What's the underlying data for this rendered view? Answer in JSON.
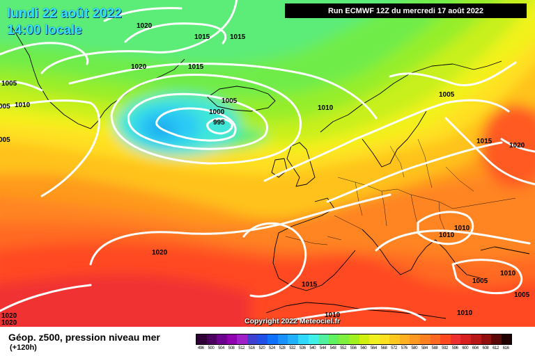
{
  "header": {
    "date_line": "lundi 22 août 2022",
    "time_line": "14:00 locale",
    "run_label": "Run ECMWF 12Z du mercredi 17 août 2022"
  },
  "footer": {
    "title": "Géop. z500, pression niveau mer",
    "horizon": "(+120h)",
    "copyright": "Copyright 2022 Meteociel.fr"
  },
  "legend": {
    "values": [
      "496",
      "500",
      "504",
      "508",
      "512",
      "516",
      "520",
      "524",
      "528",
      "532",
      "536",
      "540",
      "544",
      "548",
      "552",
      "556",
      "560",
      "564",
      "568",
      "572",
      "576",
      "580",
      "584",
      "588",
      "592",
      "596",
      "600",
      "604",
      "608",
      "612",
      "616"
    ],
    "colors": [
      "#2d0036",
      "#4b0060",
      "#6e0090",
      "#9000b0",
      "#a020c8",
      "#4040d0",
      "#2050e8",
      "#1070ff",
      "#1890ff",
      "#20b0ff",
      "#30d8ff",
      "#40f0e8",
      "#50f0a0",
      "#60f060",
      "#80f040",
      "#a0f020",
      "#d0f010",
      "#f0f020",
      "#ffe020",
      "#ffc820",
      "#ffb020",
      "#ff9820",
      "#ff8020",
      "#ff6820",
      "#ff4820",
      "#f03030",
      "#d82020",
      "#b81818",
      "#901010",
      "#5a0808",
      "#200000"
    ]
  },
  "isobar_labels": [
    {
      "text": "1020"
    },
    {
      "text": "1015"
    },
    {
      "text": "1015"
    },
    {
      "text": "1020"
    },
    {
      "text": "1015"
    },
    {
      "text": "1005"
    },
    {
      "text": "1010"
    },
    {
      "text": "005"
    },
    {
      "text": "005"
    },
    {
      "text": "1005"
    },
    {
      "text": "1000"
    },
    {
      "text": "995"
    },
    {
      "text": "1010"
    },
    {
      "text": "1005"
    },
    {
      "text": "1015"
    },
    {
      "text": "1020"
    },
    {
      "text": "1020"
    },
    {
      "text": "1010"
    },
    {
      "text": "1010"
    },
    {
      "text": "1015"
    },
    {
      "text": "1005"
    },
    {
      "text": "1010"
    },
    {
      "text": "1010"
    },
    {
      "text": "1005"
    },
    {
      "text": "1010"
    },
    {
      "text": "1020"
    },
    {
      "text": "1020"
    }
  ],
  "colors": {
    "isobar": "#ffffff",
    "coast": "#000000",
    "date_text": "#36e4ff"
  }
}
